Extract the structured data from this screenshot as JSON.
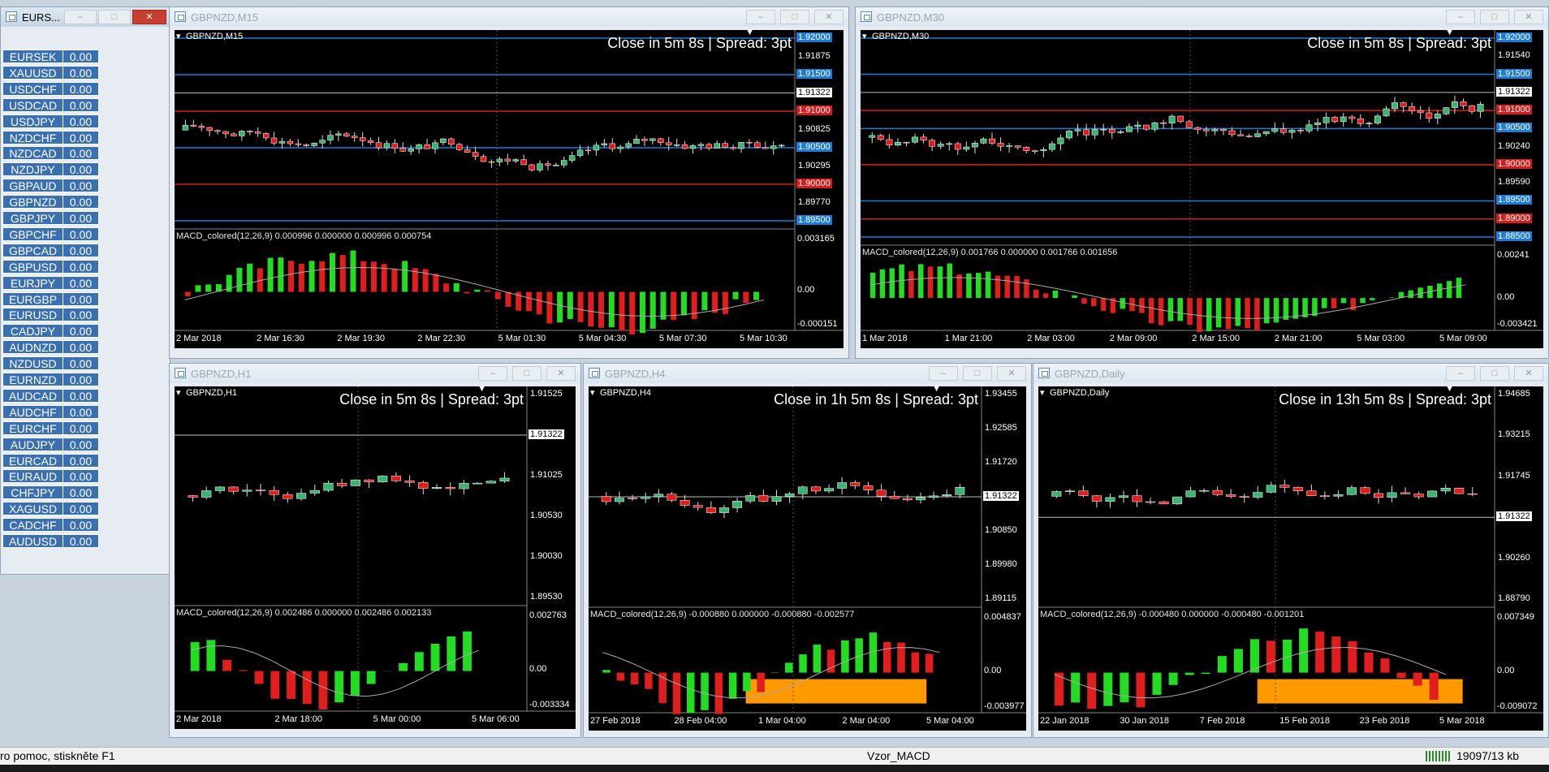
{
  "symbols_window": {
    "title": "EURS...",
    "rows": [
      {
        "sym": "EURSEK",
        "val": "0.00"
      },
      {
        "sym": "XAUUSD",
        "val": "0.00"
      },
      {
        "sym": "USDCHF",
        "val": "0.00"
      },
      {
        "sym": "USDCAD",
        "val": "0.00"
      },
      {
        "sym": "USDJPY",
        "val": "0.00"
      },
      {
        "sym": "NZDCHF",
        "val": "0.00"
      },
      {
        "sym": "NZDCAD",
        "val": "0.00"
      },
      {
        "sym": "NZDJPY",
        "val": "0.00"
      },
      {
        "sym": "GBPAUD",
        "val": "0.00"
      },
      {
        "sym": "GBPNZD",
        "val": "0.00"
      },
      {
        "sym": "GBPJPY",
        "val": "0.00"
      },
      {
        "sym": "GBPCHF",
        "val": "0.00"
      },
      {
        "sym": "GBPCAD",
        "val": "0.00"
      },
      {
        "sym": "GBPUSD",
        "val": "0.00"
      },
      {
        "sym": "EURJPY",
        "val": "0.00"
      },
      {
        "sym": "EURGBP",
        "val": "0.00"
      },
      {
        "sym": "EURUSD",
        "val": "0.00"
      },
      {
        "sym": "CADJPY",
        "val": "0.00"
      },
      {
        "sym": "AUDNZD",
        "val": "0.00"
      },
      {
        "sym": "NZDUSD",
        "val": "0.00"
      },
      {
        "sym": "EURNZD",
        "val": "0.00"
      },
      {
        "sym": "AUDCAD",
        "val": "0.00"
      },
      {
        "sym": "AUDCHF",
        "val": "0.00"
      },
      {
        "sym": "EURCHF",
        "val": "0.00"
      },
      {
        "sym": "AUDJPY",
        "val": "0.00"
      },
      {
        "sym": "EURCAD",
        "val": "0.00"
      },
      {
        "sym": "EURAUD",
        "val": "0.00"
      },
      {
        "sym": "CHFJPY",
        "val": "0.00"
      },
      {
        "sym": "XAGUSD",
        "val": "0.00"
      },
      {
        "sym": "CADCHF",
        "val": "0.00"
      },
      {
        "sym": "AUDUSD",
        "val": "0.00"
      }
    ]
  },
  "charts": [
    {
      "id": "m15",
      "title": "GBPNZD,M15",
      "chart_label": "GBPNZD,M15",
      "overlay": "Close in 5m 8s | Spread: 3pt",
      "macd_label": "MACD_colored(12,26,9) 0.000996 0.000000 0.000996 0.000754",
      "price_labels": [
        {
          "text": "1.92000",
          "kind": "blue"
        },
        {
          "text": "1.91875",
          "kind": "plain"
        },
        {
          "text": "1.91500",
          "kind": "blue"
        },
        {
          "text": "1.91322",
          "kind": "white"
        },
        {
          "text": "1.91000",
          "kind": "red"
        },
        {
          "text": "1.90825",
          "kind": "plain"
        },
        {
          "text": "1.90500",
          "kind": "blue"
        },
        {
          "text": "1.90295",
          "kind": "plain"
        },
        {
          "text": "1.90000",
          "kind": "red"
        },
        {
          "text": "1.89770",
          "kind": "plain"
        },
        {
          "text": "1.89500",
          "kind": "blue"
        }
      ],
      "macd_scale": [
        "0.003165",
        "0.00",
        "-0.000151"
      ],
      "time_labels": [
        "2 Mar 2018",
        "2 Mar 16:30",
        "2 Mar 19:30",
        "2 Mar 22:30",
        "5 Mar 01:30",
        "5 Mar 04:30",
        "5 Mar 07:30",
        "5 Mar 10:30"
      ]
    },
    {
      "id": "m30",
      "title": "GBPNZD,M30",
      "chart_label": "GBPNZD,M30",
      "overlay": "Close in 5m 8s | Spread: 3pt",
      "macd_label": "MACD_colored(12,26,9) 0.001766 0.000000 0.001766 0.001656",
      "price_labels": [
        {
          "text": "1.92000",
          "kind": "blue"
        },
        {
          "text": "1.91540",
          "kind": "plain"
        },
        {
          "text": "1.91500",
          "kind": "blue"
        },
        {
          "text": "1.91322",
          "kind": "white"
        },
        {
          "text": "1.91000",
          "kind": "red"
        },
        {
          "text": "1.90500",
          "kind": "blue"
        },
        {
          "text": "1.90240",
          "kind": "plain"
        },
        {
          "text": "1.90000",
          "kind": "red"
        },
        {
          "text": "1.89590",
          "kind": "plain"
        },
        {
          "text": "1.89500",
          "kind": "blue"
        },
        {
          "text": "1.89000",
          "kind": "red"
        },
        {
          "text": "1.88500",
          "kind": "blue"
        }
      ],
      "macd_scale": [
        "0.00241",
        "0.00",
        "-0.003421"
      ],
      "time_labels": [
        "1 Mar 2018",
        "1 Mar 21:00",
        "2 Mar 03:00",
        "2 Mar 09:00",
        "2 Mar 15:00",
        "2 Mar 21:00",
        "5 Mar 03:00",
        "5 Mar 09:00"
      ]
    },
    {
      "id": "h1",
      "title": "GBPNZD,H1",
      "chart_label": "GBPNZD,H1",
      "overlay": "Close in 5m 8s | Spread: 3pt",
      "macd_label": "MACD_colored(12,26,9) 0.002486 0.000000 0.002486 0.002133",
      "price_labels": [
        {
          "text": "1.91525",
          "kind": "plain"
        },
        {
          "text": "1.91322",
          "kind": "white"
        },
        {
          "text": "1.91025",
          "kind": "plain"
        },
        {
          "text": "1.90530",
          "kind": "plain"
        },
        {
          "text": "1.90030",
          "kind": "plain"
        },
        {
          "text": "1.89530",
          "kind": "plain"
        }
      ],
      "macd_scale": [
        "0.002763",
        "0.00",
        "-0.003334"
      ],
      "time_labels": [
        "2 Mar 2018",
        "2 Mar 18:00",
        "5 Mar 00:00",
        "5 Mar 06:00"
      ]
    },
    {
      "id": "h4",
      "title": "GBPNZD,H4",
      "chart_label": "GBPNZD,H4",
      "overlay": "Close in 1h 5m 8s | Spread: 3pt",
      "macd_label": "MACD_colored(12,26,9) -0.000880 0.000000 -0.000880 -0.002577",
      "price_labels": [
        {
          "text": "1.93455",
          "kind": "plain"
        },
        {
          "text": "1.92585",
          "kind": "plain"
        },
        {
          "text": "1.91720",
          "kind": "plain"
        },
        {
          "text": "1.91322",
          "kind": "white"
        },
        {
          "text": "1.90850",
          "kind": "plain"
        },
        {
          "text": "1.89980",
          "kind": "plain"
        },
        {
          "text": "1.89115",
          "kind": "plain"
        }
      ],
      "macd_scale": [
        "0.004837",
        "0.00",
        "-0.003977"
      ],
      "time_labels": [
        "27 Feb 2018",
        "28 Feb 04:00",
        "1 Mar 04:00",
        "2 Mar 04:00",
        "5 Mar 04:00"
      ]
    },
    {
      "id": "d1",
      "title": "GBPNZD,Daily",
      "chart_label": "GBPNZD,Daily",
      "overlay": "Close in 13h 5m 8s | Spread: 3pt",
      "macd_label": "MACD_colored(12,26,9) -0.000480 0.000000 -0.000480 -0.001201",
      "price_labels": [
        {
          "text": "1.94685",
          "kind": "plain"
        },
        {
          "text": "1.93215",
          "kind": "plain"
        },
        {
          "text": "1.91745",
          "kind": "plain"
        },
        {
          "text": "1.91322",
          "kind": "white"
        },
        {
          "text": "1.90260",
          "kind": "plain"
        },
        {
          "text": "1.88790",
          "kind": "plain"
        }
      ],
      "macd_scale": [
        "0.007349",
        "0.00",
        "-0.009072"
      ],
      "time_labels": [
        "22 Jan 2018",
        "30 Jan 2018",
        "7 Feb 2018",
        "15 Feb 2018",
        "23 Feb 2018",
        "5 Mar 2018"
      ]
    }
  ],
  "status": {
    "help": "ro pomoc, stiskněte F1",
    "profile": "Vzor_MACD",
    "traffic": "19097/13 kb"
  },
  "colors": {
    "bull": "#3cb371",
    "bear": "#e01e1e",
    "macd_green": "#22dd22",
    "macd_red": "#e01e1e",
    "hline_blue": "#1e7bd6",
    "hline_red": "#d41e1e",
    "orange": "#ff9900"
  }
}
